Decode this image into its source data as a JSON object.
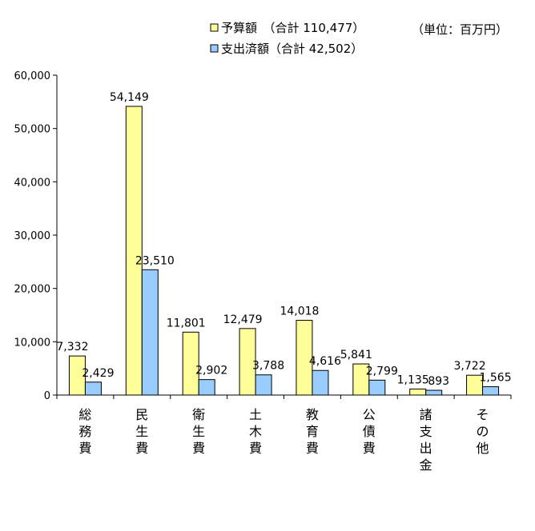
{
  "chart_data": {
    "type": "bar",
    "title": "",
    "unit_label": "（単位：百万円）",
    "categories": [
      "総務費",
      "民生費",
      "衛生費",
      "土木費",
      "教育費",
      "公債費",
      "諸支出金",
      "その他"
    ],
    "series": [
      {
        "name": "予算額",
        "legend": "予算額　（合計 110,477）",
        "color": "#FFFF99",
        "values": [
          7332,
          54149,
          11801,
          12479,
          14018,
          5841,
          1135,
          3722
        ],
        "labels": [
          "7,332",
          "54,149",
          "11,801",
          "12,479",
          "14,018",
          "5,841",
          "1,135",
          "3,722"
        ]
      },
      {
        "name": "支出済額",
        "legend": "支出済額（合計 42,502）",
        "color": "#99CCFF",
        "values": [
          2429,
          23510,
          2902,
          3788,
          4616,
          2799,
          893,
          1565
        ],
        "labels": [
          "2,429",
          "23,510",
          "2,902",
          "3,788",
          "4,616",
          "2,799",
          "893",
          "1,565"
        ]
      }
    ],
    "yticks": [
      0,
      10000,
      20000,
      30000,
      40000,
      50000,
      60000
    ],
    "ytick_labels": [
      "0",
      "10,000",
      "20,000",
      "30,000",
      "40,000",
      "50,000",
      "60,000"
    ],
    "ylim": [
      0,
      60000
    ],
    "xlabel": "",
    "ylabel": ""
  }
}
